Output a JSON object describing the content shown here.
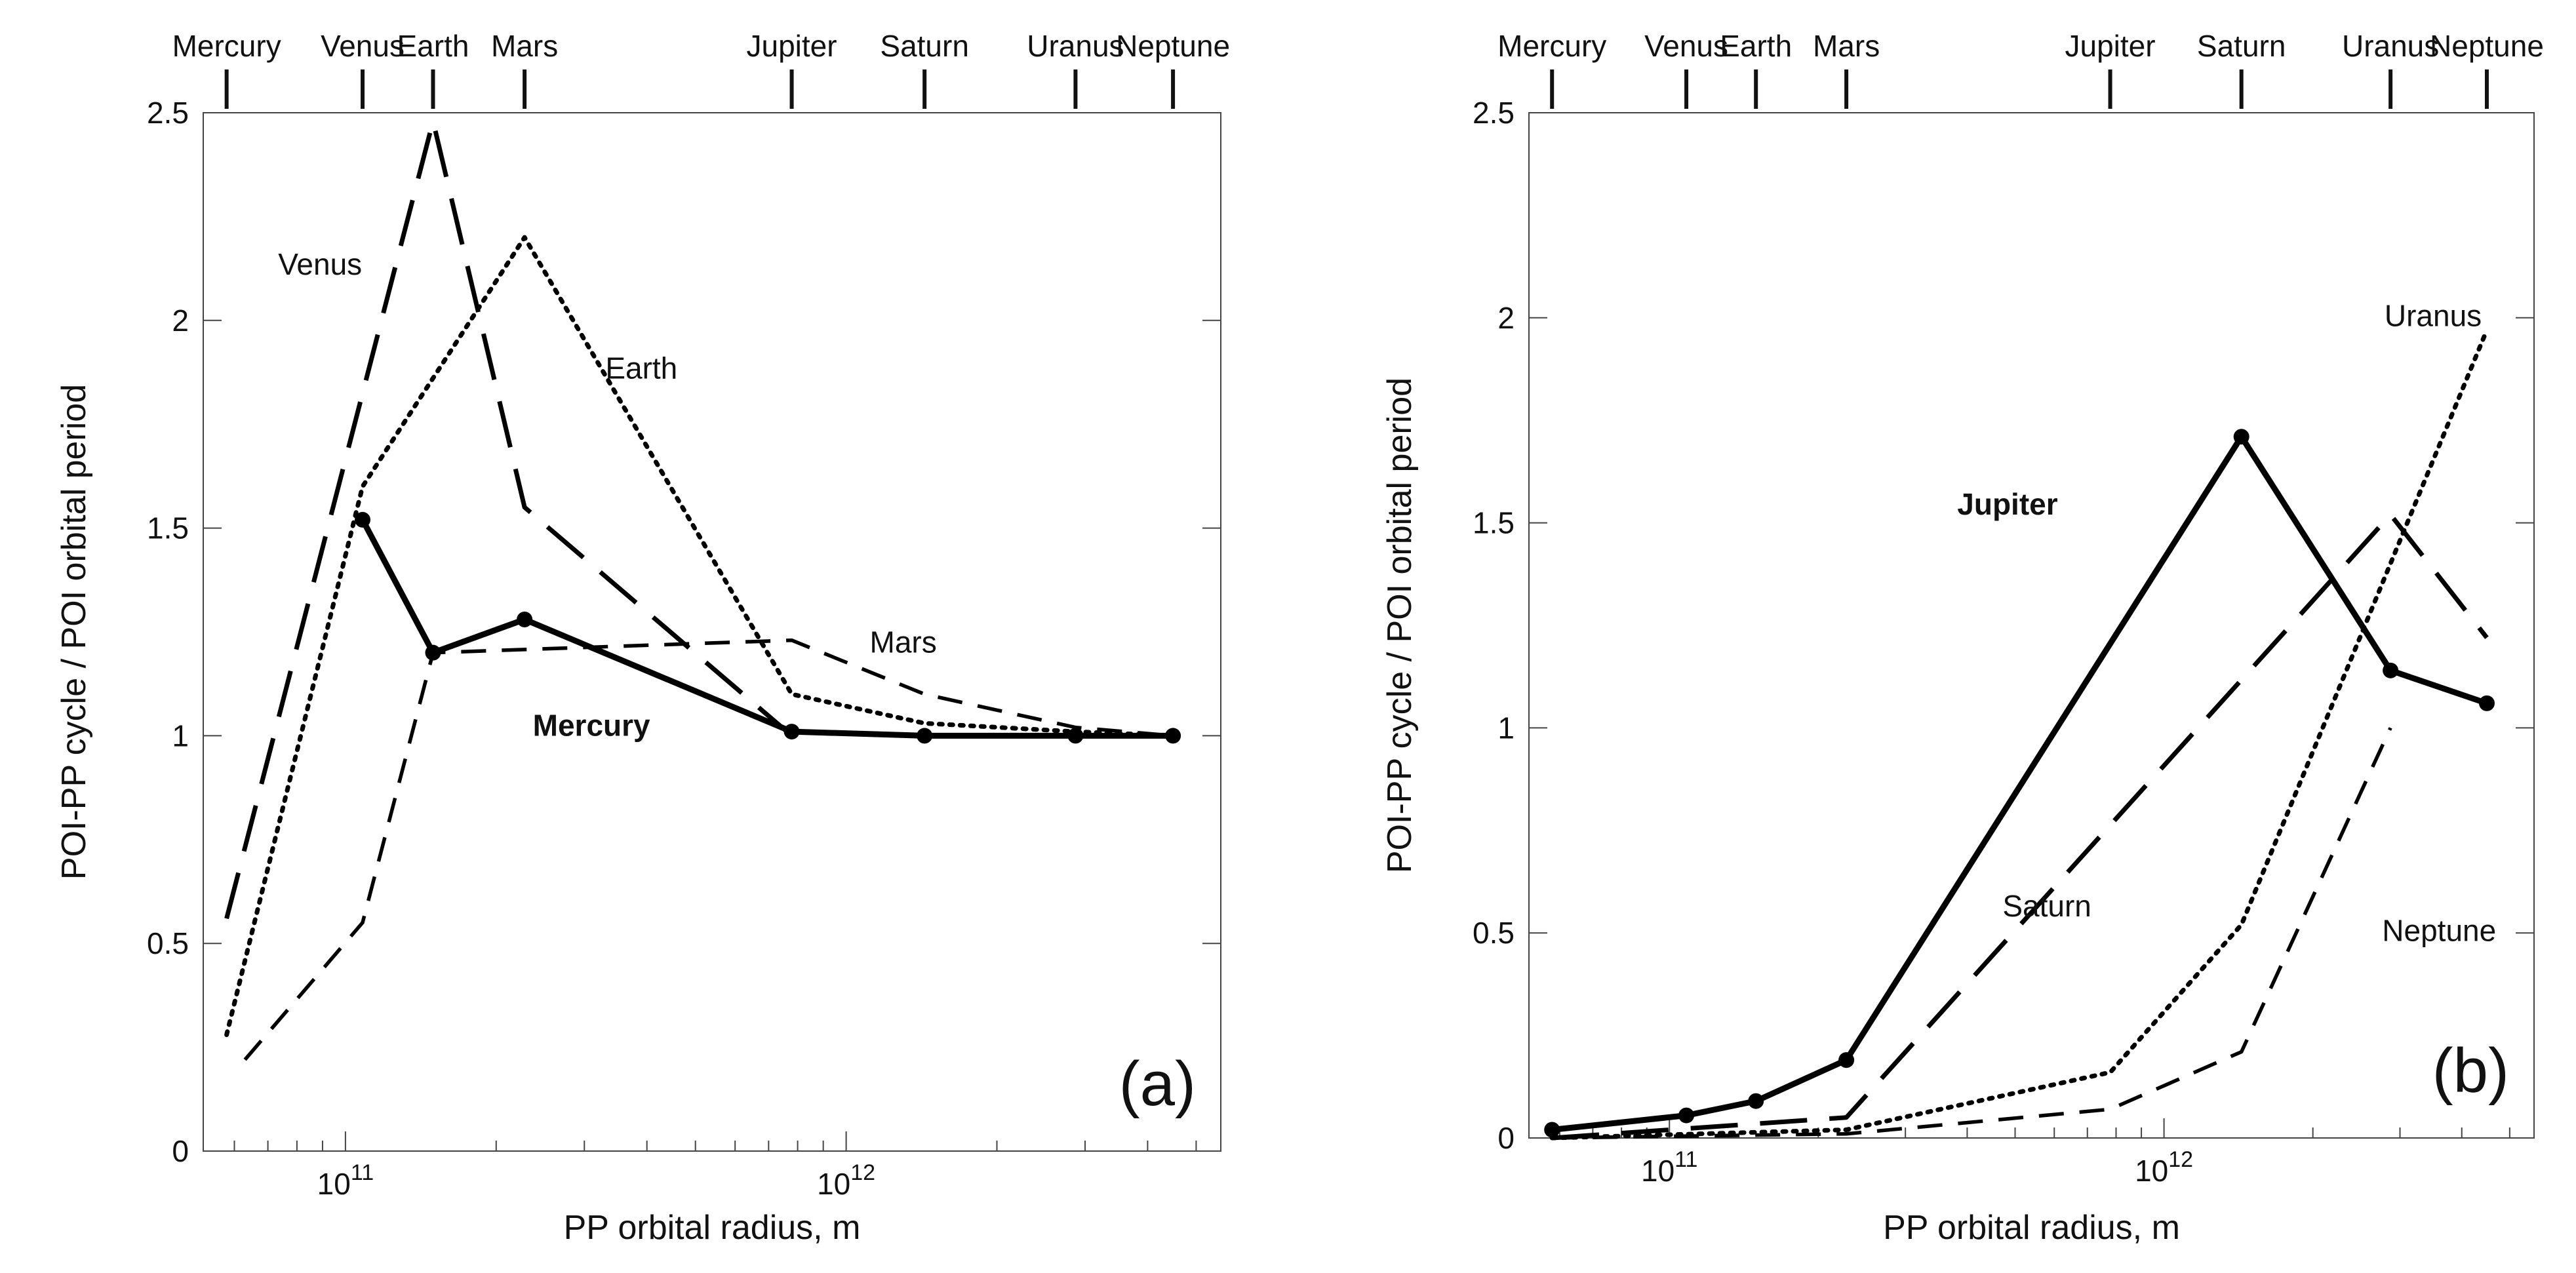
{
  "chart_data": [
    {
      "type": "line",
      "panel_tag": "(a)",
      "xscale": "log",
      "xlabel": "PP orbital radius, m",
      "ylabel": "POI-PP cycle / POI orbital period",
      "xlim": [
        52000000000.0,
        5600000000000.0
      ],
      "ylim": [
        0,
        2.5
      ],
      "x_ticks": [
        {
          "value": 100000000000.0,
          "base": "10",
          "exp": "11"
        },
        {
          "value": 1000000000000.0,
          "base": "10",
          "exp": "12"
        }
      ],
      "y_ticks": [
        "0",
        "0.5",
        "1",
        "1.5",
        "2",
        "2.5"
      ],
      "planets": [
        {
          "name": "Mercury",
          "x": 57900000000.0
        },
        {
          "name": "Venus",
          "x": 108200000000.0
        },
        {
          "name": "Earth",
          "x": 149600000000.0
        },
        {
          "name": "Mars",
          "x": 227900000000.0
        },
        {
          "name": "Jupiter",
          "x": 778500000000.0
        },
        {
          "name": "Saturn",
          "x": 1434000000000.0
        },
        {
          "name": "Uranus",
          "x": 2871000000000.0
        },
        {
          "name": "Neptune",
          "x": 4495000000000.0
        }
      ],
      "series": [
        {
          "name": "Mercury",
          "style": "solid-bold",
          "markers": true,
          "x": [
            108200000000.0,
            149600000000.0,
            227900000000.0,
            778500000000.0,
            1434000000000.0,
            2871000000000.0,
            4495000000000.0
          ],
          "y": [
            1.52,
            1.2,
            1.28,
            1.01,
            1.0,
            1.0,
            1.0
          ],
          "label": {
            "x": 310000000000.0,
            "y": 1.0,
            "anchor": "middle"
          }
        },
        {
          "name": "Venus",
          "style": "long-dash",
          "x": [
            57900000000.0,
            149600000000.0,
            227900000000.0,
            778500000000.0
          ],
          "y": [
            0.56,
            2.48,
            1.55,
            1.0
          ],
          "label": {
            "x": 89000000000.0,
            "y": 2.11,
            "anchor": "middle"
          }
        },
        {
          "name": "Earth",
          "style": "dotted",
          "x": [
            57900000000.0,
            108200000000.0,
            227900000000.0,
            778500000000.0,
            1434000000000.0,
            2871000000000.0,
            4495000000000.0
          ],
          "y": [
            0.28,
            1.6,
            2.2,
            1.1,
            1.03,
            1.01,
            1.0
          ],
          "label": {
            "x": 390000000000.0,
            "y": 1.86,
            "anchor": "middle"
          }
        },
        {
          "name": "Mars",
          "style": "short-dash",
          "x": [
            63000000000.0,
            108200000000.0,
            149600000000.0,
            778500000000.0,
            1434000000000.0,
            2871000000000.0,
            4495000000000.0
          ],
          "y": [
            0.22,
            0.55,
            1.2,
            1.23,
            1.1,
            1.02,
            1.0
          ],
          "label": {
            "x": 1300000000000.0,
            "y": 1.2,
            "anchor": "middle"
          }
        }
      ]
    },
    {
      "type": "line",
      "panel_tag": "(b)",
      "xscale": "log",
      "xlabel": "PP orbital radius, m",
      "ylabel": "POI-PP cycle / POI orbital period",
      "xlim": [
        52000000000.0,
        5600000000000.0
      ],
      "ylim": [
        0,
        2.5
      ],
      "x_ticks": [
        {
          "value": 100000000000.0,
          "base": "10",
          "exp": "11"
        },
        {
          "value": 1000000000000.0,
          "base": "10",
          "exp": "12"
        }
      ],
      "y_ticks": [
        "0",
        "0.5",
        "1",
        "1.5",
        "2",
        "2.5"
      ],
      "planets": [
        {
          "name": "Mercury",
          "x": 57900000000.0
        },
        {
          "name": "Venus",
          "x": 108200000000.0
        },
        {
          "name": "Earth",
          "x": 149600000000.0
        },
        {
          "name": "Mars",
          "x": 227900000000.0
        },
        {
          "name": "Jupiter",
          "x": 778500000000.0
        },
        {
          "name": "Saturn",
          "x": 1434000000000.0
        },
        {
          "name": "Uranus",
          "x": 2871000000000.0
        },
        {
          "name": "Neptune",
          "x": 4495000000000.0
        }
      ],
      "series": [
        {
          "name": "Jupiter",
          "style": "solid-bold",
          "markers": true,
          "x": [
            57900000000.0,
            108200000000.0,
            149600000000.0,
            227900000000.0,
            1434000000000.0,
            2871000000000.0,
            4495000000000.0
          ],
          "y": [
            0.02,
            0.055,
            0.09,
            0.19,
            1.71,
            1.14,
            1.06
          ],
          "label": {
            "x": 610000000000.0,
            "y": 1.52,
            "anchor": "end"
          }
        },
        {
          "name": "Saturn",
          "style": "long-dash",
          "x": [
            57900000000.0,
            227900000000.0,
            2871000000000.0,
            4495000000000.0
          ],
          "y": [
            0.0,
            0.05,
            1.52,
            1.22
          ],
          "label": {
            "x": 580000000000.0,
            "y": 0.54,
            "anchor": "middle"
          }
        },
        {
          "name": "Uranus",
          "style": "dotted",
          "x": [
            57900000000.0,
            227900000000.0,
            778500000000.0,
            1434000000000.0,
            4495000000000.0
          ],
          "y": [
            0.0,
            0.02,
            0.16,
            0.52,
            1.97
          ],
          "label": {
            "x": 3500000000000.0,
            "y": 1.98,
            "anchor": "middle"
          }
        },
        {
          "name": "Neptune",
          "style": "short-dash",
          "x": [
            57900000000.0,
            227900000000.0,
            778500000000.0,
            1434000000000.0,
            2871000000000.0
          ],
          "y": [
            0.0,
            0.01,
            0.07,
            0.21,
            1.0
          ],
          "label": {
            "x": 3600000000000.0,
            "y": 0.48,
            "anchor": "middle"
          }
        }
      ]
    }
  ]
}
